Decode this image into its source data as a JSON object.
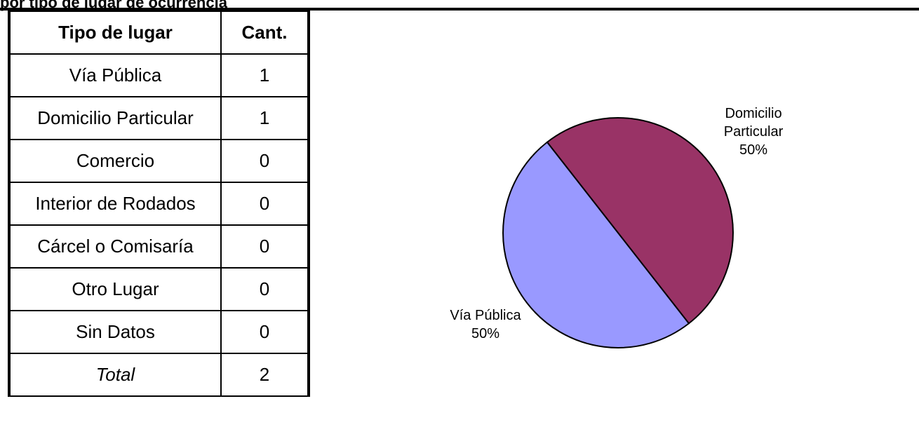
{
  "title": "por tipo de lugar de ocurrencia",
  "table": {
    "headers": [
      "Tipo de lugar",
      "Cant."
    ],
    "rows": [
      {
        "lugar": "Vía Pública",
        "cant": "1"
      },
      {
        "lugar": "Domicilio Particular",
        "cant": "1"
      },
      {
        "lugar": "Comercio",
        "cant": "0"
      },
      {
        "lugar": "Interior de Rodados",
        "cant": "0"
      },
      {
        "lugar": "Cárcel o Comisaría",
        "cant": "0"
      },
      {
        "lugar": "Otro Lugar",
        "cant": "0"
      },
      {
        "lugar": "Sin Datos",
        "cant": "0"
      }
    ],
    "total": {
      "lugar": "Total",
      "cant": "2"
    }
  },
  "chart_data": {
    "type": "pie",
    "slices": [
      {
        "label": "Vía Pública",
        "value": 1,
        "percent": "50%",
        "color": "#9999ff"
      },
      {
        "label": "Domicilio Particular",
        "value": 1,
        "percent": "50%",
        "color": "#993366"
      }
    ]
  }
}
